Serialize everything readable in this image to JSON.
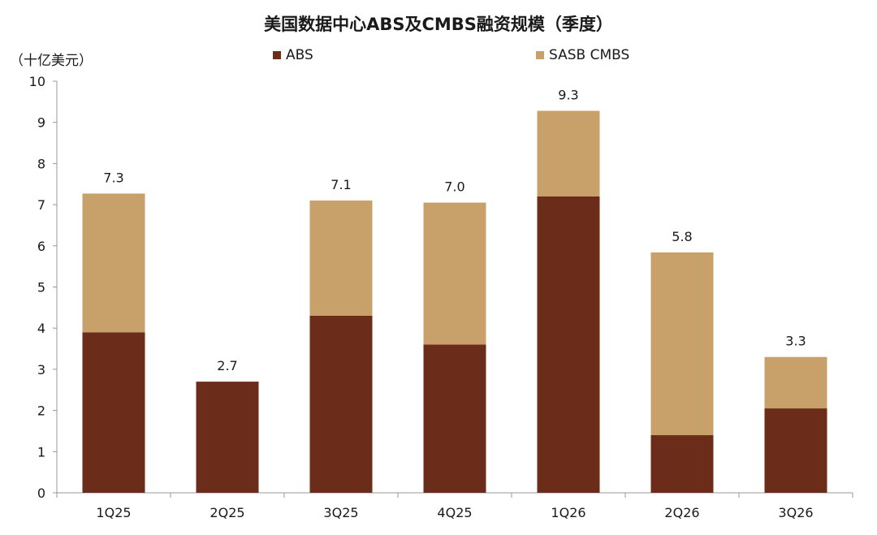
{
  "title": "美国数据中心ABS及CMBS融资规模（季度）",
  "unit": "（十亿美元）",
  "colors": {
    "abs": "#6b2c1a",
    "cmbs": "#c8a06a",
    "axis": "#999999"
  },
  "chart_data": {
    "type": "bar",
    "stacked": true,
    "categories": [
      "1Q25",
      "2Q25",
      "3Q25",
      "4Q25",
      "1Q26",
      "2Q26",
      "3Q26"
    ],
    "series": [
      {
        "name": "ABS",
        "values": [
          3.9,
          2.7,
          4.3,
          3.6,
          7.2,
          1.4,
          2.05
        ]
      },
      {
        "name": "SASB CMBS",
        "values": [
          3.37,
          0,
          2.8,
          3.45,
          2.08,
          4.44,
          1.25
        ]
      }
    ],
    "total_labels": [
      "7.3",
      "2.7",
      "7.1",
      "7.0",
      "9.3",
      "5.8",
      "3.3"
    ],
    "ylim": [
      0,
      10
    ],
    "yticks": [
      "0",
      "1",
      "2",
      "3",
      "4",
      "5",
      "6",
      "7",
      "8",
      "9",
      "10"
    ],
    "legend_position": "top",
    "grid": false
  }
}
